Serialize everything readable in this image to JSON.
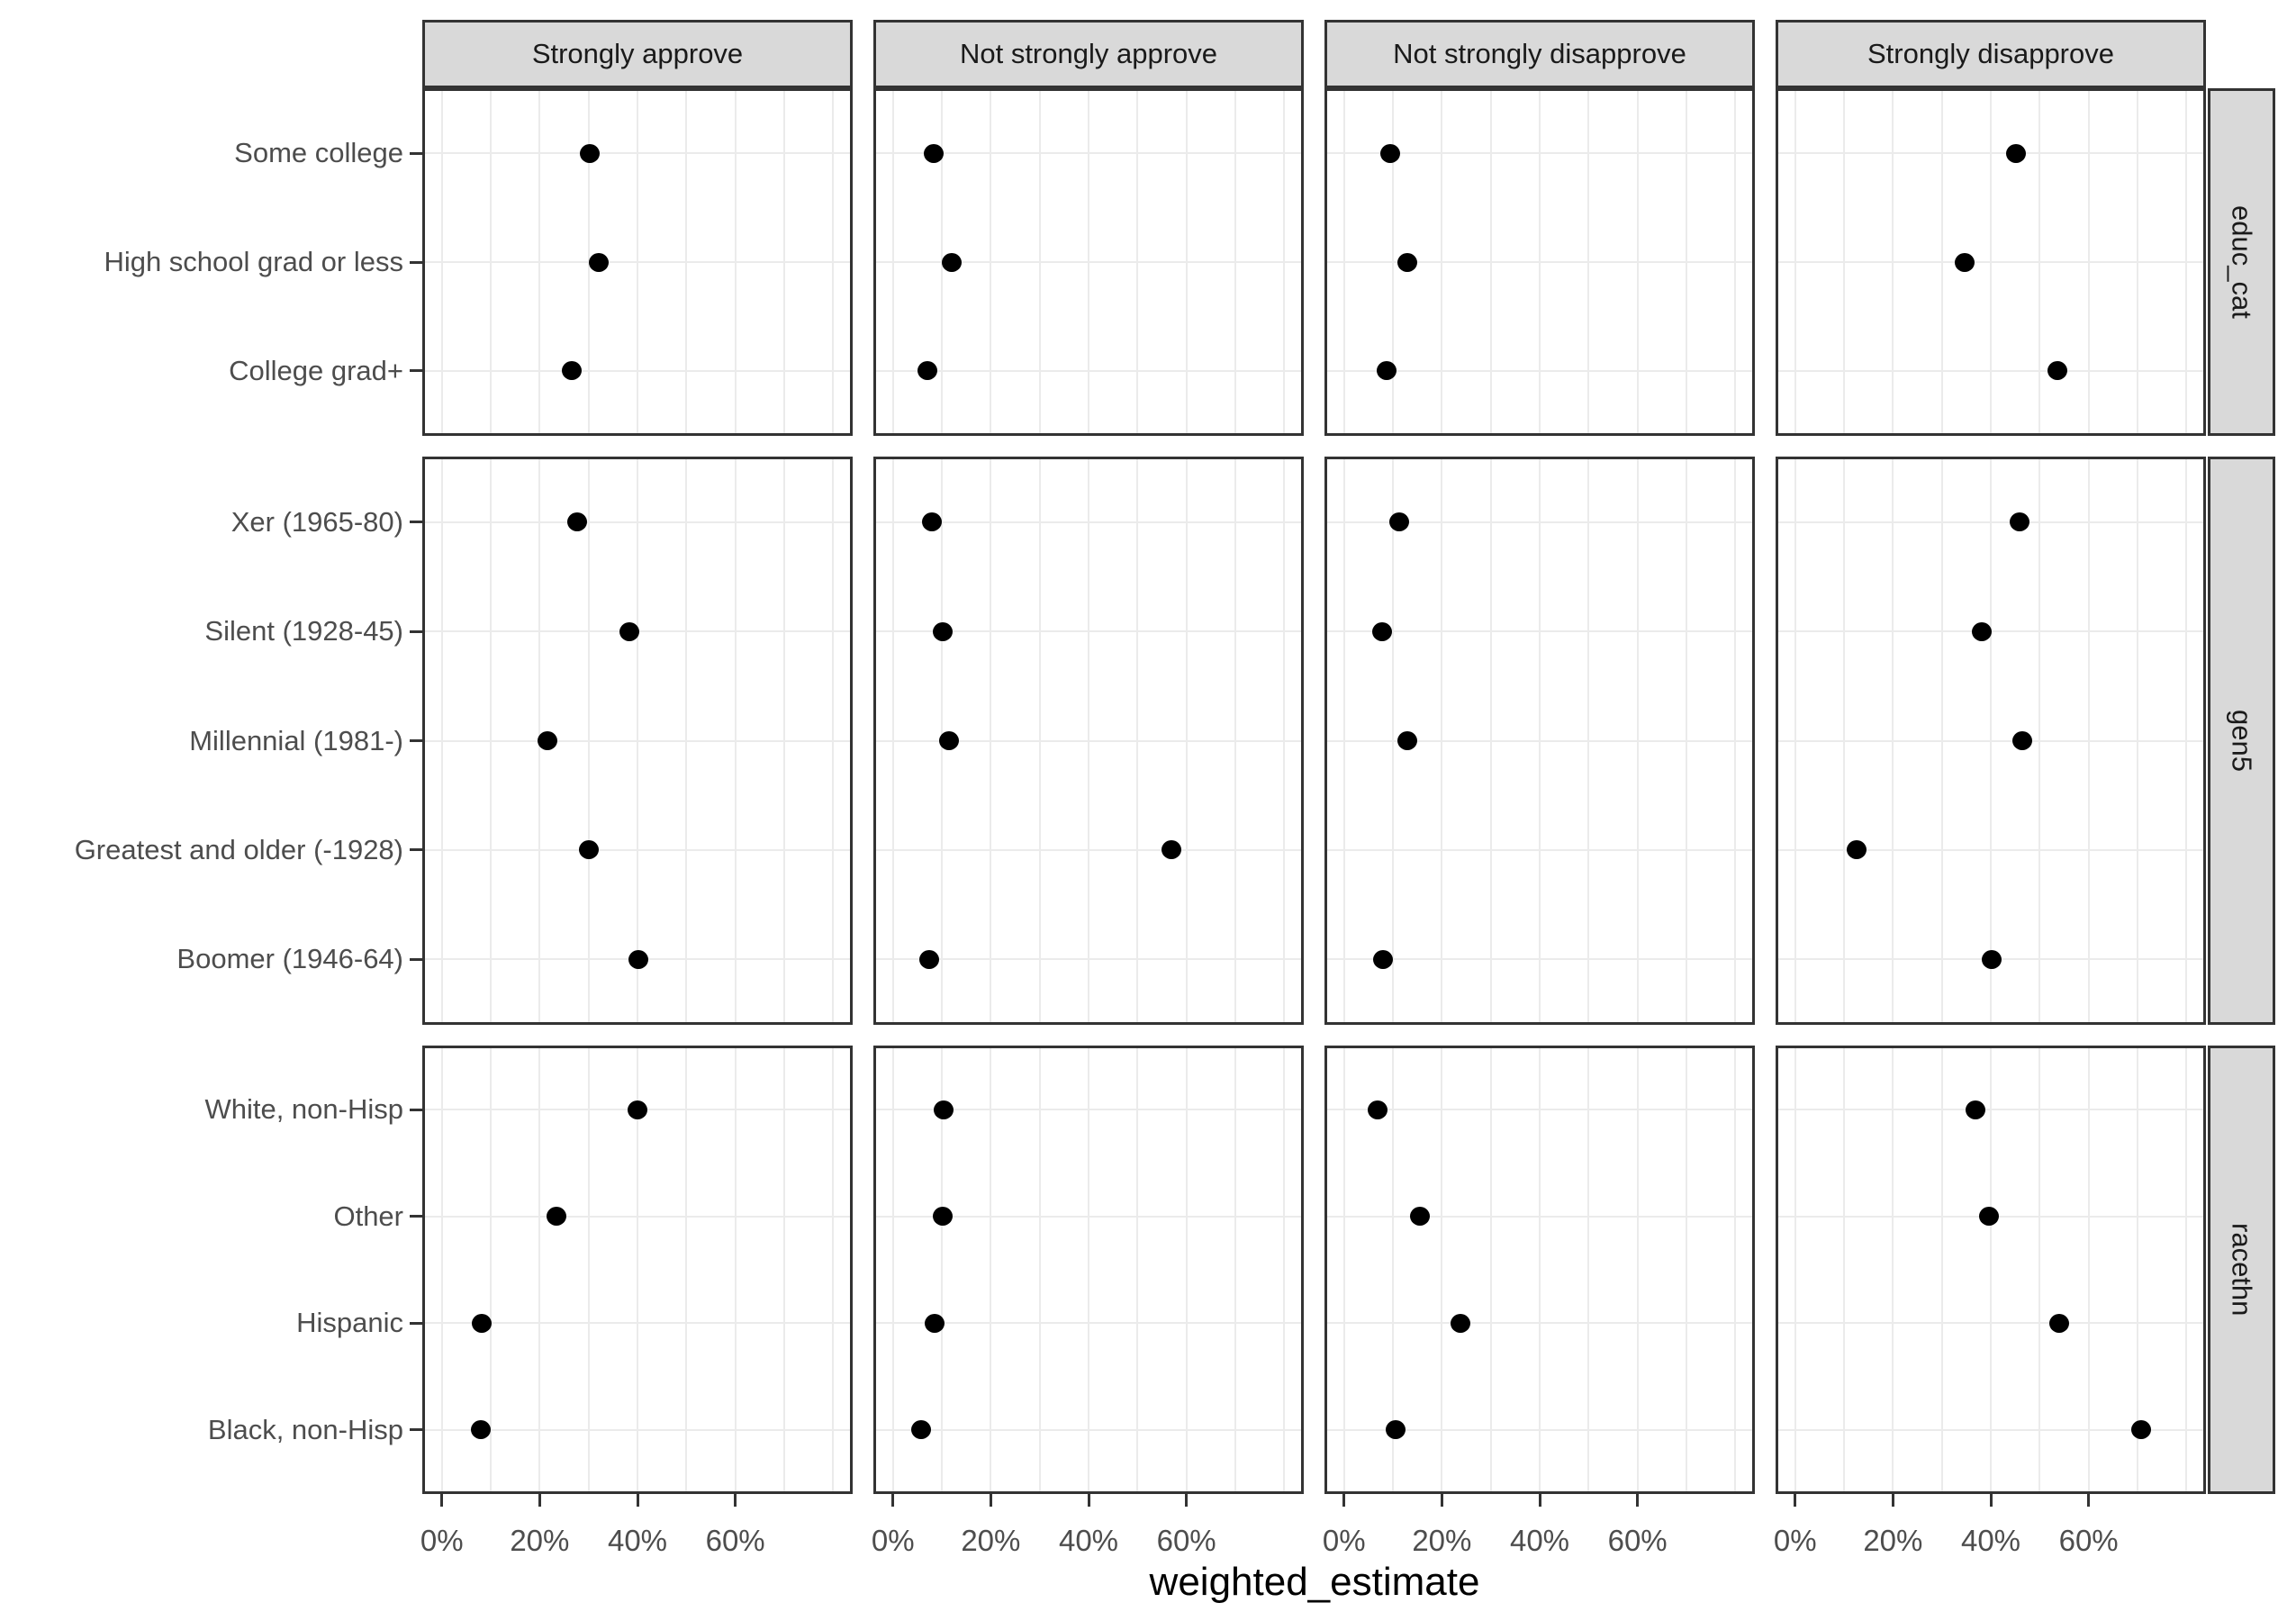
{
  "chart_data": {
    "type": "scatter",
    "title": "",
    "xlabel": "weighted_estimate",
    "ylabel": "",
    "x_axis": {
      "tick_labels": [
        "0%",
        "20%",
        "40%",
        "60%"
      ],
      "tick_values": [
        0,
        20,
        40,
        60
      ],
      "gridline_values": [
        0,
        10,
        20,
        30,
        40,
        50,
        60,
        70,
        80
      ],
      "panel_range": [
        -4,
        84
      ],
      "unit": "percent"
    },
    "columns": [
      "Strongly approve",
      "Not strongly approve",
      "Not strongly disapprove",
      "Strongly disapprove"
    ],
    "facets": [
      {
        "label": "educ_cat",
        "categories": [
          "Some college",
          "High school grad or less",
          "College grad+"
        ],
        "series": [
          {
            "name": "Strongly approve",
            "values": [
              30.3,
              32.1,
              26.6
            ]
          },
          {
            "name": "Not strongly approve",
            "values": [
              8.3,
              12.0,
              7.0
            ]
          },
          {
            "name": "Not strongly disapprove",
            "values": [
              9.5,
              13.0,
              8.7
            ]
          },
          {
            "name": "Strongly disapprove",
            "values": [
              45.1,
              34.6,
              53.7
            ]
          }
        ]
      },
      {
        "label": "gen5",
        "categories": [
          "Xer (1965-80)",
          "Silent (1928-45)",
          "Millennial (1981-)",
          "Greatest and older (-1928)",
          "Boomer (1946-64)"
        ],
        "series": [
          {
            "name": "Strongly approve",
            "values": [
              27.7,
              38.3,
              21.5,
              30.0,
              40.1
            ]
          },
          {
            "name": "Not strongly approve",
            "values": [
              7.9,
              10.1,
              11.5,
              57.0,
              7.5
            ]
          },
          {
            "name": "Not strongly disapprove",
            "values": [
              11.2,
              7.8,
              13.0,
              null,
              8.0
            ]
          },
          {
            "name": "Strongly disapprove",
            "values": [
              45.9,
              38.1,
              46.4,
              12.6,
              40.1
            ]
          }
        ]
      },
      {
        "label": "racethn",
        "categories": [
          "White, non-Hisp",
          "Other",
          "Hispanic",
          "Black, non-Hisp"
        ],
        "series": [
          {
            "name": "Strongly approve",
            "values": [
              40.0,
              23.5,
              8.2,
              8.0
            ]
          },
          {
            "name": "Not strongly approve",
            "values": [
              10.4,
              10.2,
              8.5,
              5.8
            ]
          },
          {
            "name": "Not strongly disapprove",
            "values": [
              6.8,
              15.6,
              23.8,
              10.5
            ]
          },
          {
            "name": "Strongly disapprove",
            "values": [
              36.9,
              39.6,
              53.9,
              70.7
            ]
          }
        ]
      }
    ],
    "legend": "none",
    "grid": "on",
    "colors": {
      "dot": "#000000",
      "strip_fill": "#d9d9d9",
      "panel_border": "#333333",
      "gridline": "#ebebeb",
      "axis_text": "#4d4d4d",
      "strip_text": "#1a1a1a",
      "title_text": "#000000"
    }
  }
}
